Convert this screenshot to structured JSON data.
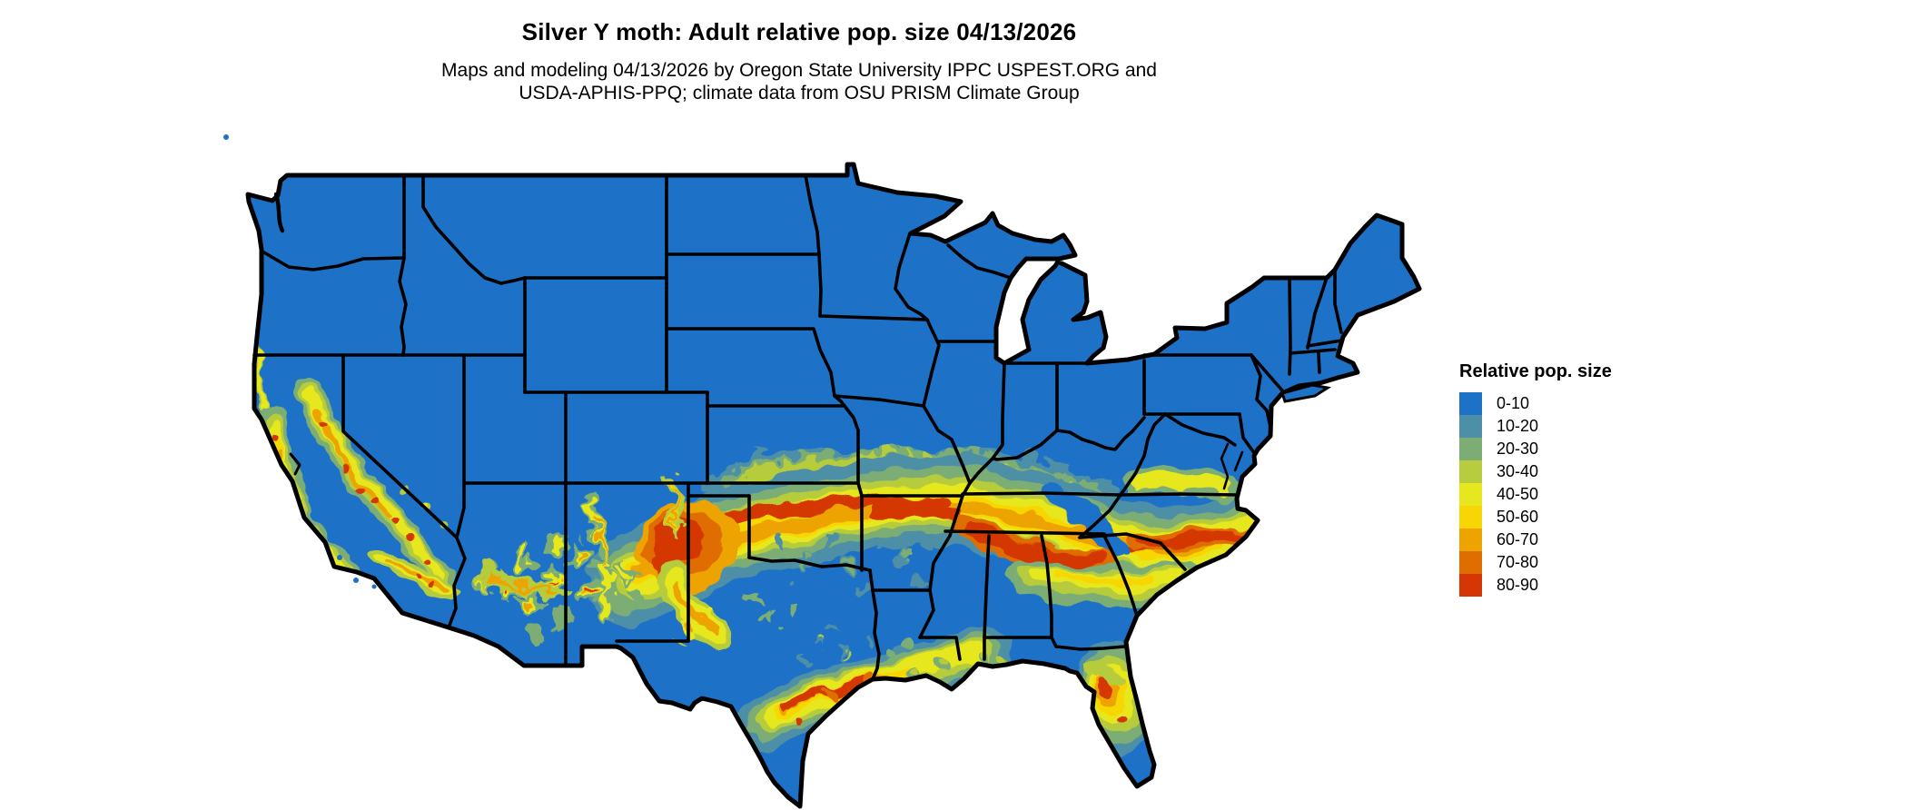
{
  "header": {
    "title": "Silver Y moth: Adult relative pop. size 04/13/2026",
    "subtitle_line1": "Maps and modeling 04/13/2026 by Oregon State University IPPC USPEST.ORG and",
    "subtitle_line2": "USDA-APHIS-PPQ; climate data from OSU PRISM Climate Group"
  },
  "legend": {
    "title": "Relative pop. size",
    "items": [
      {
        "label": "0-10",
        "color": "#1d72c8"
      },
      {
        "label": "10-20",
        "color": "#4d8fa6"
      },
      {
        "label": "20-30",
        "color": "#7bad75"
      },
      {
        "label": "30-40",
        "color": "#b7cc3e"
      },
      {
        "label": "40-50",
        "color": "#e6e71f"
      },
      {
        "label": "50-60",
        "color": "#f8d606"
      },
      {
        "label": "60-70",
        "color": "#eda400"
      },
      {
        "label": "70-80",
        "color": "#e06d00"
      },
      {
        "label": "80-90",
        "color": "#d43705"
      }
    ]
  },
  "map": {
    "region": "contiguous-united-states",
    "type": "raster-choropleth",
    "land_base_color": "#1d72c8",
    "border_color": "#000000",
    "background_color": "#ffffff"
  }
}
